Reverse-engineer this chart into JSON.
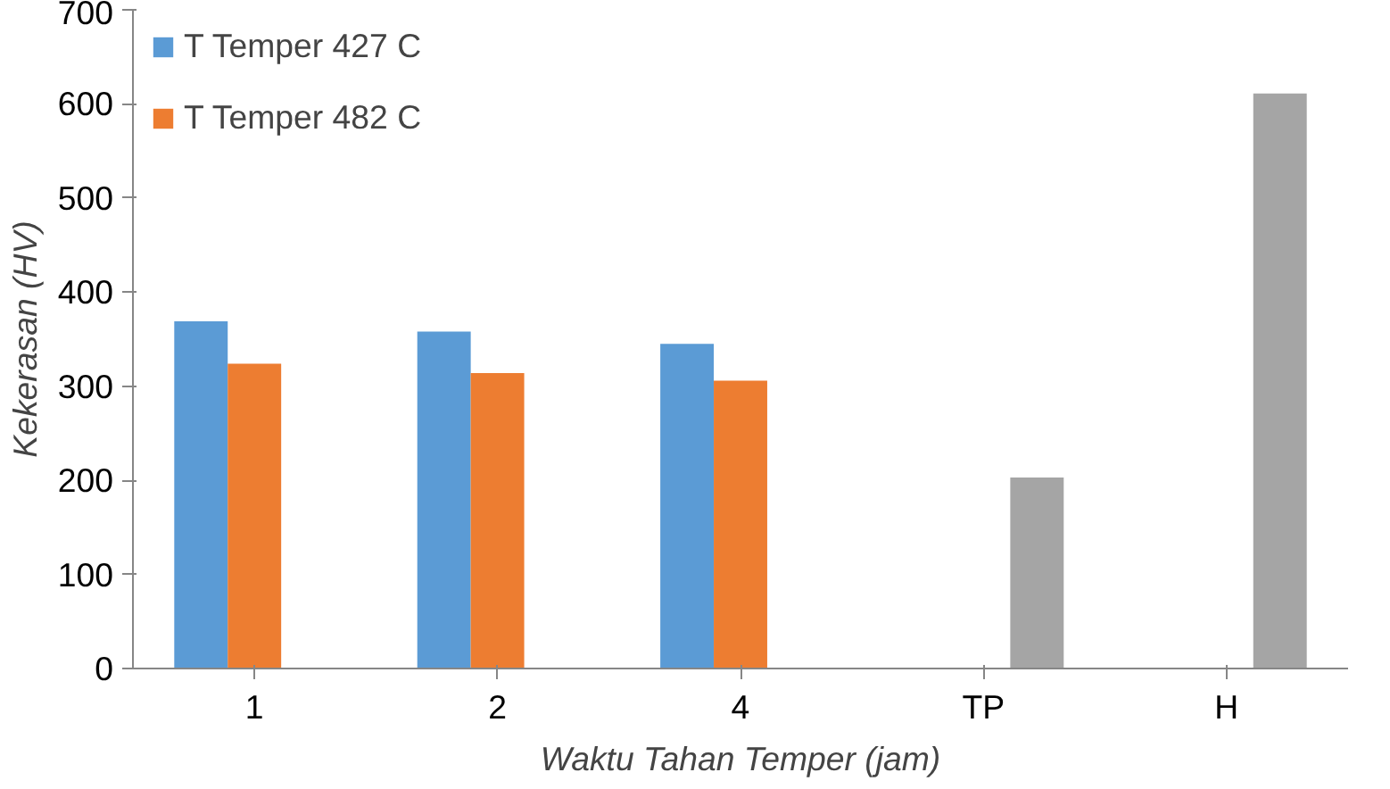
{
  "chart_data": {
    "type": "bar",
    "xlabel": "Waktu Tahan Temper (jam)",
    "ylabel": "Kekerasan (HV)",
    "categories": [
      "1",
      "2",
      "4",
      "TP",
      "H"
    ],
    "series": [
      {
        "name": "T Temper 427 C",
        "color": "#5b9bd5",
        "values": [
          369,
          358,
          345,
          null,
          null
        ]
      },
      {
        "name": "T Temper 482 C",
        "color": "#ed7d31",
        "values": [
          324,
          314,
          306,
          null,
          null
        ]
      },
      {
        "color": "#a5a5a5",
        "values": [
          null,
          null,
          null,
          203,
          611
        ]
      }
    ],
    "ylim": [
      0,
      700
    ],
    "yticks": [
      0,
      100,
      200,
      300,
      400,
      500,
      600,
      700
    ],
    "grid": false,
    "legend": "top left"
  }
}
